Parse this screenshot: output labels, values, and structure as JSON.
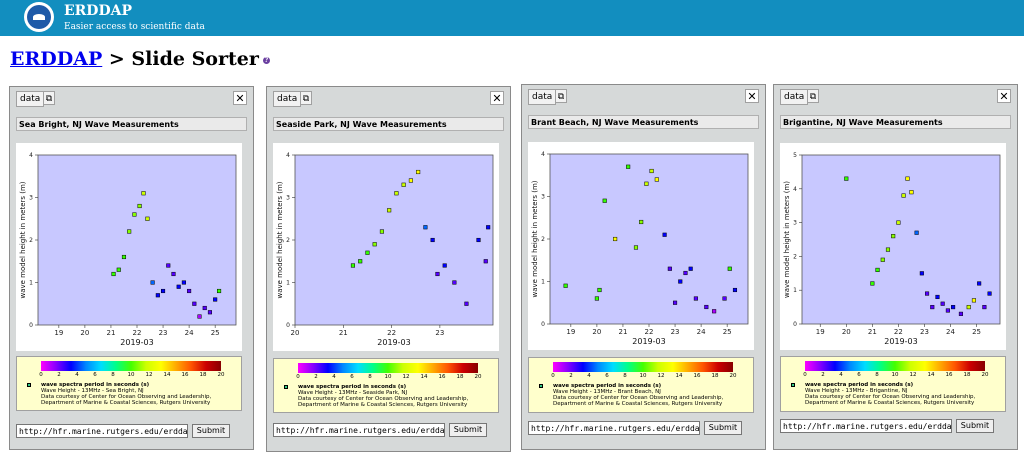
{
  "banner": {
    "title": "ERDDAP",
    "tagline": "Easier access to scientific data",
    "logo_text": "NOAA"
  },
  "heading": {
    "link": "ERDDAP",
    "sep": " > ",
    "title": "Slide Sorter",
    "help": "?"
  },
  "colors": {
    "banner": "#128ebf",
    "plot_bg": "#c8c8ff",
    "slide_bg": "#d6d9d9",
    "legend_bg": "#ffffcc"
  },
  "common": {
    "tab_label": "data",
    "close_glyph": "✕",
    "popout_glyph": "⧉",
    "submit_label": "Submit",
    "ylabel": "wave model height in meters (m)",
    "xlabel": "2019-03",
    "legend_var": "wave spectra period in seconds (s)",
    "legend_credit1": "Data courtesy of Center for Ocean Observing and Leadership,",
    "legend_credit2": "Department of Marine & Coastal Sciences, Rutgers University",
    "colorbar_ticks": [
      "0",
      "2",
      "4",
      "6",
      "8",
      "10",
      "12",
      "14",
      "16",
      "18",
      "20"
    ]
  },
  "slides": [
    {
      "title": "Sea Bright, NJ Wave Measurements",
      "legend_source": "Wave Height - 13MHz - Sea Bright, NJ",
      "url": "http://hfr.marine.rutgers.edu/erddap/tabledap/re",
      "chart_data": {
        "type": "scatter",
        "xlabel": "2019-03",
        "ylabel": "wave model height in meters (m)",
        "xlim": [
          18.2,
          25.8
        ],
        "ylim": [
          0,
          4
        ],
        "x_ticks": [
          "19",
          "20",
          "21",
          "22",
          "23",
          "24",
          "25"
        ],
        "y_ticks": [
          "0",
          "1",
          "2",
          "3",
          "4"
        ],
        "x": [
          21.1,
          21.3,
          21.5,
          21.7,
          21.9,
          22.1,
          22.25,
          22.4,
          22.6,
          22.8,
          23.0,
          23.2,
          23.4,
          23.6,
          23.8,
          24.0,
          24.2,
          24.4,
          24.6,
          24.8,
          25.0,
          25.15
        ],
        "y": [
          1.2,
          1.3,
          1.6,
          2.2,
          2.6,
          2.8,
          3.1,
          2.5,
          1.0,
          0.7,
          0.8,
          1.4,
          1.2,
          0.9,
          1.0,
          0.8,
          0.5,
          0.2,
          0.4,
          0.3,
          0.6,
          0.8
        ],
        "period": [
          9,
          9,
          9,
          10,
          10,
          10,
          11,
          11,
          4,
          3,
          3,
          2,
          2,
          3,
          3,
          2,
          2,
          1,
          2,
          2,
          3,
          9
        ]
      }
    },
    {
      "title": "Seaside Park, NJ Wave Measurements",
      "legend_source": "Wave Height - 13MHz - Seaside Park, NJ",
      "url": "http://hfr.marine.rutgers.edu/erddap/tabledap/re",
      "chart_data": {
        "type": "scatter",
        "xlabel": "2019-03",
        "ylabel": "wave model height in meters (m)",
        "xlim": [
          20.0,
          24.1
        ],
        "ylim": [
          0,
          4
        ],
        "x_ticks": [
          "20",
          "21",
          "22",
          "23"
        ],
        "y_ticks": [
          "0",
          "1",
          "2",
          "3",
          "4"
        ],
        "x": [
          21.2,
          21.35,
          21.5,
          21.65,
          21.8,
          21.95,
          22.1,
          22.25,
          22.4,
          22.55,
          22.7,
          22.85,
          22.95,
          23.1,
          23.3,
          23.55,
          23.8,
          23.95,
          24.0
        ],
        "y": [
          1.4,
          1.5,
          1.7,
          1.9,
          2.2,
          2.7,
          3.1,
          3.3,
          3.4,
          3.6,
          2.3,
          2.0,
          1.2,
          1.4,
          1.0,
          0.5,
          2.0,
          1.5,
          2.3
        ],
        "period": [
          9,
          9,
          9,
          10,
          10,
          11,
          11,
          11,
          12,
          12,
          4,
          3,
          2,
          3,
          2,
          2,
          3,
          2,
          3
        ]
      }
    },
    {
      "title": "Brant Beach, NJ Wave Measurements",
      "legend_source": "Wave Height - 13MHz - Brant Beach, NJ",
      "url": "http://hfr.marine.rutgers.edu/erddap/tabledap/re",
      "chart_data": {
        "type": "scatter",
        "xlabel": "2019-03",
        "ylabel": "wave model height in meters (m)",
        "xlim": [
          18.2,
          25.8
        ],
        "ylim": [
          0,
          4
        ],
        "x_ticks": [
          "19",
          "20",
          "21",
          "22",
          "23",
          "24",
          "25"
        ],
        "y_ticks": [
          "0",
          "1",
          "2",
          "3",
          "4"
        ],
        "x": [
          18.8,
          20.0,
          20.1,
          20.3,
          20.7,
          21.2,
          21.5,
          21.7,
          21.9,
          22.1,
          22.3,
          22.6,
          22.8,
          23.0,
          23.2,
          23.4,
          23.6,
          23.8,
          24.2,
          24.5,
          24.9,
          25.1,
          25.3
        ],
        "y": [
          0.9,
          0.6,
          0.8,
          2.9,
          2.0,
          3.7,
          1.8,
          2.4,
          3.3,
          3.6,
          3.4,
          2.1,
          1.3,
          0.5,
          1.0,
          1.2,
          1.3,
          0.6,
          0.4,
          0.3,
          0.6,
          1.3,
          0.8
        ],
        "period": [
          9,
          9,
          9,
          9,
          12,
          9,
          10,
          10,
          11,
          11,
          12,
          3,
          2,
          2,
          3,
          2,
          3,
          2,
          2,
          1,
          2,
          9,
          3
        ]
      }
    },
    {
      "title": "Brigantine, NJ Wave Measurements",
      "legend_source": "Wave Height - 13MHz - Brigantine, NJ",
      "url": "http://hfr.marine.rutgers.edu/erddap/tabledap/re",
      "chart_data": {
        "type": "scatter",
        "xlabel": "2019-03",
        "ylabel": "wave model height in meters (m)",
        "xlim": [
          18.3,
          25.9
        ],
        "ylim": [
          0,
          5
        ],
        "x_ticks": [
          "19",
          "20",
          "21",
          "22",
          "23",
          "24",
          "25"
        ],
        "y_ticks": [
          "0",
          "1",
          "2",
          "3",
          "4",
          "5"
        ],
        "x": [
          20.0,
          21.0,
          21.2,
          21.4,
          21.6,
          21.8,
          22.0,
          22.2,
          22.35,
          22.5,
          22.7,
          22.9,
          23.1,
          23.3,
          23.5,
          23.7,
          23.9,
          24.1,
          24.4,
          24.7,
          24.9,
          25.1,
          25.3,
          25.5
        ],
        "y": [
          4.3,
          1.2,
          1.6,
          1.9,
          2.2,
          2.6,
          3.0,
          3.8,
          4.3,
          3.9,
          2.7,
          1.5,
          0.9,
          0.5,
          0.8,
          0.6,
          0.4,
          0.5,
          0.3,
          0.5,
          0.7,
          1.2,
          0.5,
          0.9
        ],
        "period": [
          9,
          9,
          9,
          10,
          10,
          10,
          11,
          11,
          12,
          12,
          4,
          3,
          2,
          2,
          3,
          2,
          2,
          3,
          2,
          11,
          12,
          3,
          2,
          3
        ]
      }
    }
  ]
}
